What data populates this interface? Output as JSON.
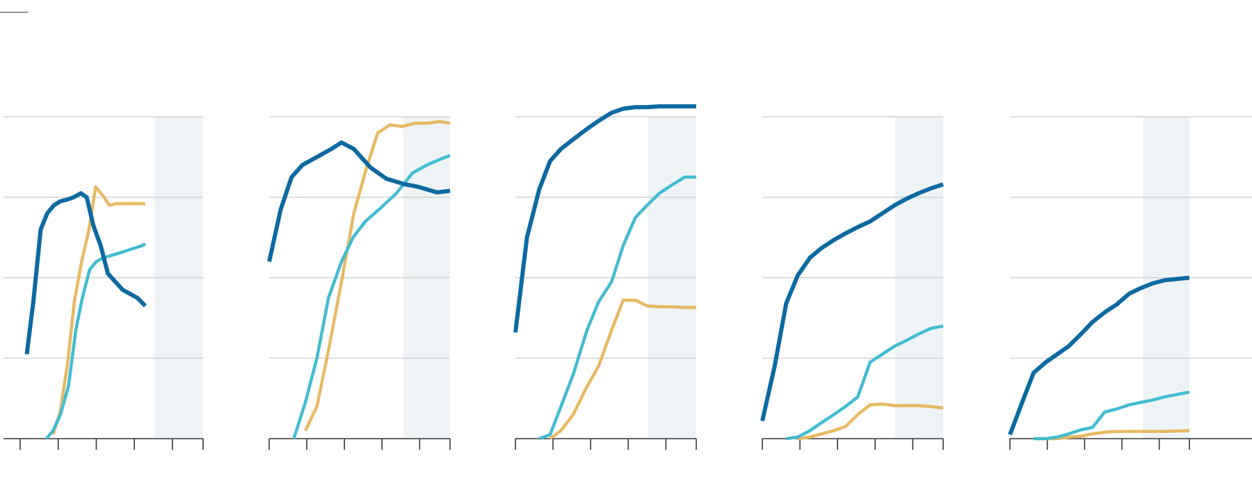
{
  "colors": {
    "grid": "#cccccc",
    "axis": "#333333",
    "highlight": "#eef4f6",
    "series_dark": "#0b6aa2",
    "series_light": "#41bcd2",
    "series_gold": "#e8b962"
  },
  "chart_data": [
    {
      "type": "line",
      "x": [
        1,
        2,
        3,
        4,
        5,
        6,
        7,
        8,
        9,
        10,
        11,
        12,
        13,
        14,
        15,
        16,
        17,
        18,
        19,
        20,
        21,
        22,
        23,
        24,
        25
      ],
      "xlim": [
        0,
        25
      ],
      "ylim": [
        0,
        4
      ],
      "grid": true,
      "highlight_range": [
        19,
        25
      ],
      "series": [
        {
          "color": "#0b6aa2",
          "points": [
            [
              0.9,
              1.05
            ],
            [
              1.8,
              1.7
            ],
            [
              2.8,
              2.6
            ],
            [
              3.7,
              2.8
            ],
            [
              4.6,
              2.9
            ],
            [
              5.5,
              2.95
            ],
            [
              6.4,
              2.97
            ],
            [
              7.3,
              3.0
            ],
            [
              8.3,
              3.05
            ],
            [
              9.1,
              3.0
            ],
            [
              10.0,
              2.65
            ],
            [
              11.0,
              2.4
            ],
            [
              12.0,
              2.05
            ],
            [
              13.0,
              1.95
            ],
            [
              14.0,
              1.85
            ],
            [
              15.0,
              1.8
            ],
            [
              16.0,
              1.75
            ],
            [
              17.1,
              1.65
            ]
          ]
        },
        {
          "color": "#41bcd2",
          "points": [
            [
              3.6,
              0.0
            ],
            [
              4.5,
              0.1
            ],
            [
              5.5,
              0.3
            ],
            [
              6.6,
              0.65
            ],
            [
              7.6,
              1.35
            ],
            [
              8.5,
              1.75
            ],
            [
              9.5,
              2.1
            ],
            [
              10.4,
              2.2
            ],
            [
              11.4,
              2.25
            ],
            [
              13.3,
              2.3
            ],
            [
              15.0,
              2.35
            ],
            [
              16.7,
              2.4
            ],
            [
              17.1,
              2.42
            ]
          ]
        },
        {
          "color": "#e8b962",
          "points": [
            [
              4.5,
              0.05
            ],
            [
              5.5,
              0.35
            ],
            [
              6.5,
              0.95
            ],
            [
              7.4,
              1.7
            ],
            [
              8.4,
              2.2
            ],
            [
              9.4,
              2.6
            ],
            [
              10.3,
              3.13
            ],
            [
              11.3,
              3.02
            ],
            [
              12.2,
              2.9
            ],
            [
              13.1,
              2.92
            ],
            [
              14.1,
              2.92
            ],
            [
              15.1,
              2.92
            ],
            [
              17.1,
              2.92
            ]
          ]
        }
      ]
    },
    {
      "type": "line",
      "x": [
        1,
        2,
        3,
        4,
        5,
        6,
        7,
        8,
        9,
        10,
        11,
        12,
        13,
        14,
        15,
        16,
        17,
        18,
        19,
        20,
        21,
        22,
        23,
        24,
        25
      ],
      "xlim": [
        0,
        25
      ],
      "ylim": [
        0,
        4
      ],
      "grid": true,
      "highlight_range": [
        19,
        25
      ],
      "series": [
        {
          "color": "#0b6aa2",
          "points": [
            [
              0.0,
              2.2
            ],
            [
              1.6,
              2.85
            ],
            [
              3.1,
              3.25
            ],
            [
              4.6,
              3.4
            ],
            [
              6.6,
              3.5
            ],
            [
              8.6,
              3.6
            ],
            [
              10.0,
              3.68
            ],
            [
              11.7,
              3.6
            ],
            [
              14.0,
              3.37
            ],
            [
              16.2,
              3.23
            ],
            [
              18.8,
              3.16
            ],
            [
              20.6,
              3.13
            ],
            [
              23.2,
              3.06
            ],
            [
              25.0,
              3.08
            ]
          ]
        },
        {
          "color": "#41bcd2",
          "points": [
            [
              3.4,
              0.0
            ],
            [
              5.0,
              0.45
            ],
            [
              6.6,
              1.0
            ],
            [
              8.2,
              1.75
            ],
            [
              10.0,
              2.2
            ],
            [
              11.6,
              2.5
            ],
            [
              13.3,
              2.7
            ],
            [
              15.2,
              2.85
            ],
            [
              17.6,
              3.05
            ],
            [
              19.8,
              3.3
            ],
            [
              21.8,
              3.4
            ],
            [
              23.6,
              3.47
            ],
            [
              25.0,
              3.52
            ]
          ]
        },
        {
          "color": "#e8b962",
          "points": [
            [
              5.0,
              0.1
            ],
            [
              6.6,
              0.4
            ],
            [
              8.2,
              1.1
            ],
            [
              10.0,
              1.95
            ],
            [
              11.7,
              2.8
            ],
            [
              13.4,
              3.35
            ],
            [
              15.0,
              3.8
            ],
            [
              16.7,
              3.9
            ],
            [
              18.4,
              3.88
            ],
            [
              20.1,
              3.92
            ],
            [
              21.9,
              3.92
            ],
            [
              23.5,
              3.94
            ],
            [
              25.0,
              3.92
            ]
          ]
        }
      ]
    },
    {
      "type": "line",
      "x": [
        1,
        2,
        3,
        4,
        5,
        6,
        7,
        8,
        9,
        10,
        11,
        12,
        13,
        14,
        15,
        16,
        17,
        18,
        19,
        20,
        21,
        22,
        23,
        24,
        25
      ],
      "xlim": [
        0,
        25
      ],
      "ylim": [
        0,
        4
      ],
      "grid": true,
      "highlight_range": [
        18,
        25
      ],
      "series": [
        {
          "color": "#0b6aa2",
          "points": [
            [
              0.0,
              1.32
            ],
            [
              1.6,
              2.5
            ],
            [
              3.3,
              3.1
            ],
            [
              4.8,
              3.45
            ],
            [
              6.3,
              3.6
            ],
            [
              8.0,
              3.72
            ],
            [
              9.9,
              3.85
            ],
            [
              11.5,
              3.95
            ],
            [
              13.3,
              4.05
            ],
            [
              14.9,
              4.1
            ],
            [
              16.6,
              4.12
            ],
            [
              18.2,
              4.12
            ],
            [
              19.9,
              4.13
            ],
            [
              21.6,
              4.13
            ],
            [
              25.0,
              4.13
            ]
          ]
        },
        {
          "color": "#41bcd2",
          "points": [
            [
              3.3,
              0.0
            ],
            [
              4.8,
              0.05
            ],
            [
              6.3,
              0.4
            ],
            [
              8.0,
              0.8
            ],
            [
              9.9,
              1.35
            ],
            [
              11.5,
              1.7
            ],
            [
              13.3,
              1.95
            ],
            [
              14.9,
              2.4
            ],
            [
              16.6,
              2.75
            ],
            [
              18.2,
              2.9
            ],
            [
              19.9,
              3.05
            ],
            [
              21.6,
              3.15
            ],
            [
              23.4,
              3.25
            ],
            [
              25.0,
              3.25
            ]
          ]
        },
        {
          "color": "#e8b962",
          "points": [
            [
              4.8,
              0.0
            ],
            [
              6.3,
              0.1
            ],
            [
              8.0,
              0.3
            ],
            [
              9.9,
              0.65
            ],
            [
              11.5,
              0.9
            ],
            [
              13.3,
              1.35
            ],
            [
              14.9,
              1.72
            ],
            [
              16.6,
              1.72
            ],
            [
              18.2,
              1.65
            ],
            [
              19.9,
              1.64
            ],
            [
              21.6,
              1.64
            ],
            [
              23.4,
              1.63
            ],
            [
              25.0,
              1.63
            ]
          ]
        }
      ]
    },
    {
      "type": "line",
      "x": [
        1,
        2,
        3,
        4,
        5,
        6,
        7,
        8,
        9,
        10,
        11,
        12,
        13,
        14,
        15,
        16,
        17,
        18,
        19,
        20,
        21,
        22,
        23,
        24,
        25
      ],
      "xlim": [
        0,
        25
      ],
      "ylim": [
        0,
        4
      ],
      "grid": true,
      "highlight_range": [
        18.3,
        25
      ],
      "series": [
        {
          "color": "#0b6aa2",
          "points": [
            [
              0.0,
              0.22
            ],
            [
              1.7,
              0.9
            ],
            [
              3.3,
              1.68
            ],
            [
              4.9,
              2.03
            ],
            [
              6.6,
              2.25
            ],
            [
              8.2,
              2.37
            ],
            [
              9.9,
              2.47
            ],
            [
              11.5,
              2.55
            ],
            [
              13.2,
              2.63
            ],
            [
              14.9,
              2.7
            ],
            [
              16.6,
              2.8
            ],
            [
              18.3,
              2.9
            ],
            [
              19.9,
              2.98
            ],
            [
              21.6,
              3.05
            ],
            [
              23.3,
              3.11
            ],
            [
              25.0,
              3.16
            ]
          ]
        },
        {
          "color": "#41bcd2",
          "points": [
            [
              3.3,
              0.0
            ],
            [
              4.9,
              0.02
            ],
            [
              6.6,
              0.1
            ],
            [
              8.2,
              0.2
            ],
            [
              9.9,
              0.3
            ],
            [
              11.5,
              0.4
            ],
            [
              13.2,
              0.52
            ],
            [
              14.9,
              0.95
            ],
            [
              16.6,
              1.05
            ],
            [
              18.3,
              1.15
            ],
            [
              19.9,
              1.22
            ],
            [
              21.6,
              1.3
            ],
            [
              23.3,
              1.37
            ],
            [
              25.0,
              1.4
            ]
          ]
        },
        {
          "color": "#e8b962",
          "points": [
            [
              4.9,
              0.0
            ],
            [
              6.6,
              0.02
            ],
            [
              8.2,
              0.06
            ],
            [
              9.9,
              0.1
            ],
            [
              11.5,
              0.15
            ],
            [
              13.2,
              0.3
            ],
            [
              14.9,
              0.42
            ],
            [
              16.6,
              0.43
            ],
            [
              18.3,
              0.41
            ],
            [
              19.9,
              0.41
            ],
            [
              21.6,
              0.41
            ],
            [
              23.3,
              0.4
            ],
            [
              25.0,
              0.38
            ]
          ]
        }
      ]
    },
    {
      "type": "line",
      "x": [
        1,
        2,
        3,
        4,
        5,
        6,
        7,
        8,
        9,
        10,
        11,
        12,
        13,
        14,
        15,
        16,
        17,
        18,
        19,
        20,
        21,
        22,
        23,
        24,
        25
      ],
      "xlim": [
        0,
        25
      ],
      "ylim": [
        0,
        4
      ],
      "grid": true,
      "highlight_range": [
        18.2,
        25
      ],
      "series": [
        {
          "color": "#0b6aa2",
          "points": [
            [
              0.0,
              0.05
            ],
            [
              1.7,
              0.45
            ],
            [
              3.3,
              0.82
            ],
            [
              5.0,
              0.95
            ],
            [
              6.6,
              1.05
            ],
            [
              8.2,
              1.15
            ],
            [
              9.9,
              1.3
            ],
            [
              11.5,
              1.45
            ],
            [
              13.2,
              1.57
            ],
            [
              14.9,
              1.67
            ],
            [
              16.6,
              1.8
            ],
            [
              18.2,
              1.87
            ],
            [
              19.9,
              1.93
            ],
            [
              21.6,
              1.97
            ],
            [
              25.0,
              2.0
            ]
          ]
        },
        {
          "color": "#41bcd2",
          "points": [
            [
              3.3,
              0.0
            ],
            [
              5.0,
              0.0
            ],
            [
              6.6,
              0.02
            ],
            [
              8.2,
              0.06
            ],
            [
              9.9,
              0.11
            ],
            [
              11.5,
              0.14
            ],
            [
              13.2,
              0.33
            ],
            [
              14.9,
              0.37
            ],
            [
              16.6,
              0.42
            ],
            [
              18.2,
              0.45
            ],
            [
              19.9,
              0.48
            ],
            [
              21.6,
              0.52
            ],
            [
              25.0,
              0.58
            ]
          ]
        },
        {
          "color": "#e8b962",
          "points": [
            [
              3.3,
              0.0
            ],
            [
              5.0,
              0.0
            ],
            [
              6.6,
              0.0
            ],
            [
              8.2,
              0.02
            ],
            [
              9.9,
              0.03
            ],
            [
              11.5,
              0.06
            ],
            [
              13.2,
              0.08
            ],
            [
              14.9,
              0.09
            ],
            [
              16.6,
              0.09
            ],
            [
              18.2,
              0.09
            ],
            [
              19.9,
              0.09
            ],
            [
              21.6,
              0.09
            ],
            [
              25.0,
              0.1
            ]
          ]
        }
      ]
    }
  ]
}
